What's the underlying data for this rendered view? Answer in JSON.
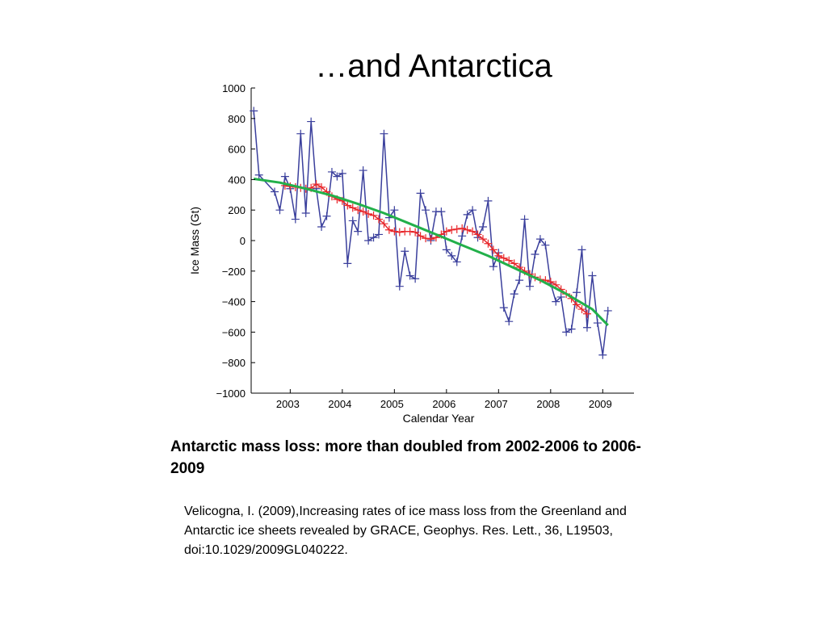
{
  "slide": {
    "title": "…and Antarctica",
    "caption": "Antarctic mass loss: more than doubled from 2002-2006 to 2006-2009",
    "citation": "Velicogna, I. (2009),Increasing rates of ice mass loss from the Greenland and Antarctic ice sheets revealed by GRACE, Geophys. Res. Lett., 36, L19503, doi:10.1029/2009GL040222."
  },
  "chart_data": {
    "type": "line",
    "title": "",
    "xlabel": "Calendar Year",
    "ylabel": "Ice Mass (Gt)",
    "xlim": [
      2002.25,
      2009.6
    ],
    "ylim": [
      -1000,
      1000
    ],
    "x_ticks": [
      2003,
      2004,
      2005,
      2006,
      2007,
      2008,
      2009
    ],
    "y_ticks": [
      1000,
      800,
      600,
      400,
      200,
      0,
      -200,
      -400,
      -600,
      -800,
      -1000
    ],
    "grid": false,
    "colors": {
      "monthly": "#3a3f9c",
      "smoothed": "#e8262a",
      "trend": "#22b04a"
    },
    "series": [
      {
        "marker": "+",
        "x": [
          2002.3,
          2002.4,
          2002.7,
          2002.8,
          2002.9,
          2003.0,
          2003.1,
          2003.2,
          2003.3,
          2003.4,
          2003.5,
          2003.6,
          2003.7,
          2003.8,
          2003.9,
          2004.0,
          2004.1,
          2004.2,
          2004.3,
          2004.4,
          2004.5,
          2004.6,
          2004.7,
          2004.8,
          2004.9,
          2005.0,
          2005.1,
          2005.2,
          2005.3,
          2005.4,
          2005.5,
          2005.6,
          2005.7,
          2005.8,
          2005.9,
          2006.0,
          2006.1,
          2006.2,
          2006.3,
          2006.4,
          2006.5,
          2006.6,
          2006.7,
          2006.8,
          2006.9,
          2007.0,
          2007.1,
          2007.2,
          2007.3,
          2007.4,
          2007.5,
          2007.6,
          2007.7,
          2007.8,
          2007.9,
          2008.0,
          2008.1,
          2008.2,
          2008.3,
          2008.4,
          2008.5,
          2008.6,
          2008.7,
          2008.8,
          2008.9,
          2009.0,
          2009.1
        ],
        "values": [
          850,
          430,
          320,
          200,
          420,
          340,
          140,
          700,
          180,
          780,
          340,
          90,
          160,
          450,
          420,
          440,
          -150,
          130,
          60,
          460,
          0,
          20,
          40,
          700,
          150,
          200,
          -300,
          -70,
          -230,
          -250,
          310,
          200,
          0,
          190,
          190,
          -60,
          -100,
          -140,
          30,
          170,
          200,
          20,
          90,
          260,
          -170,
          -80,
          -440,
          -530,
          -350,
          -260,
          140,
          -300,
          -90,
          10,
          -30,
          -280,
          -400,
          -370,
          -600,
          -580,
          -340,
          -60,
          -570,
          -230,
          -540,
          -750,
          -460
        ]
      },
      {
        "marker": "+",
        "x": [
          2002.9,
          2003.0,
          2003.1,
          2003.2,
          2003.3,
          2003.4,
          2003.5,
          2003.6,
          2003.7,
          2003.8,
          2003.9,
          2004.0,
          2004.1,
          2004.2,
          2004.3,
          2004.4,
          2004.5,
          2004.6,
          2004.7,
          2004.8,
          2004.9,
          2005.0,
          2005.1,
          2005.2,
          2005.3,
          2005.4,
          2005.5,
          2005.6,
          2005.7,
          2005.8,
          2005.9,
          2006.0,
          2006.1,
          2006.2,
          2006.3,
          2006.4,
          2006.5,
          2006.6,
          2006.7,
          2006.8,
          2006.9,
          2007.0,
          2007.1,
          2007.2,
          2007.3,
          2007.4,
          2007.5,
          2007.6,
          2007.7,
          2007.8,
          2007.9,
          2008.0,
          2008.1,
          2008.2,
          2008.3,
          2008.4,
          2008.5,
          2008.6,
          2008.7
        ],
        "values": [
          360,
          355,
          350,
          345,
          340,
          345,
          370,
          350,
          320,
          290,
          270,
          260,
          230,
          215,
          200,
          190,
          175,
          165,
          140,
          110,
          70,
          60,
          55,
          60,
          60,
          55,
          30,
          15,
          10,
          20,
          40,
          60,
          70,
          75,
          80,
          70,
          60,
          40,
          10,
          -20,
          -60,
          -100,
          -115,
          -130,
          -150,
          -175,
          -200,
          -220,
          -240,
          -255,
          -260,
          -270,
          -290,
          -320,
          -350,
          -380,
          -420,
          -450,
          -480
        ]
      },
      {
        "marker": "",
        "x": [
          2002.3,
          2002.8,
          2003.3,
          2003.8,
          2004.3,
          2004.8,
          2005.3,
          2005.8,
          2006.3,
          2006.8,
          2007.3,
          2007.8,
          2008.3,
          2008.8,
          2009.1
        ],
        "values": [
          405,
          380,
          340,
          295,
          240,
          180,
          110,
          40,
          -30,
          -100,
          -180,
          -260,
          -350,
          -450,
          -555
        ]
      }
    ]
  }
}
